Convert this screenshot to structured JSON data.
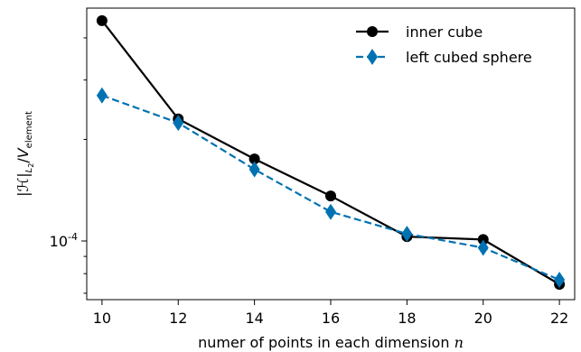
{
  "chart_data": {
    "type": "line",
    "title": "",
    "xlabel": "numer of points in each dimension",
    "xlabel_var": "n",
    "ylabel": "|ℋ|_L2 / V_element",
    "ylabel_parts": {
      "lead": "|",
      "script": "ℋ",
      "bar": "|",
      "sub1": "L",
      "sub2": "2",
      "slash": "/",
      "var": "V",
      "varsub": "element"
    },
    "x": [
      10,
      12,
      14,
      16,
      18,
      20,
      22
    ],
    "xticks": [
      "10",
      "12",
      "14",
      "16",
      "18",
      "20",
      "22"
    ],
    "xlim": [
      9.6,
      22.4
    ],
    "yscale": "log",
    "ylim": [
      6.7e-05,
      0.00049
    ],
    "yticks": [
      {
        "value": 0.0001,
        "base": "10",
        "exp": "-4"
      }
    ],
    "y_minor_ticks": [
      7e-05,
      8e-05,
      9e-05,
      0.0002,
      0.0003,
      0.0004
    ],
    "grid": false,
    "legend_position": "top-right",
    "series": [
      {
        "name": "inner cube",
        "color": "#000000",
        "marker": "circle",
        "linestyle": "solid",
        "values": [
          0.00045,
          0.00023,
          0.000175,
          0.000136,
          0.000103,
          0.000101,
          7.44e-05
        ]
      },
      {
        "name": "left cubed sphere",
        "color": "#0072b2",
        "marker": "diamond",
        "linestyle": "dashed",
        "values": [
          0.00027,
          0.000224,
          0.000163,
          0.000122,
          0.000105,
          9.55e-05,
          7.67e-05
        ]
      }
    ]
  }
}
